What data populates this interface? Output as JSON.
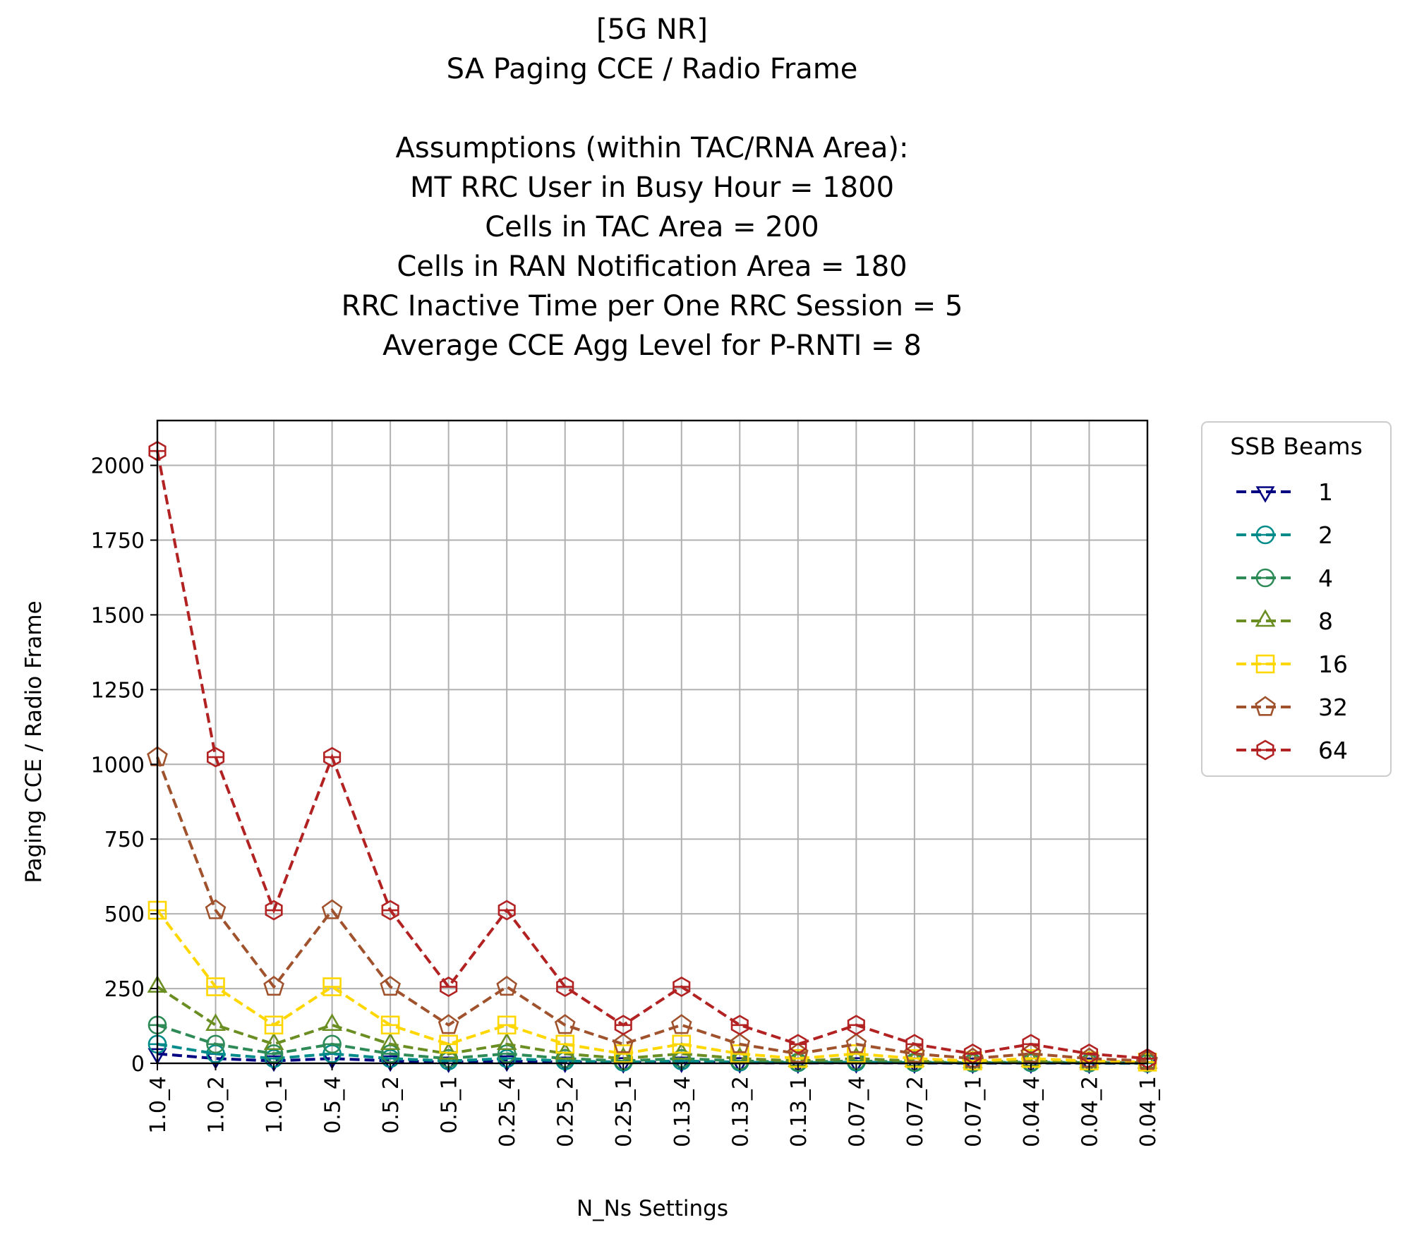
{
  "chart_data": {
    "type": "line",
    "title_lines": [
      "[5G NR]",
      "SA Paging CCE / Radio Frame",
      "",
      "Assumptions (within TAC/RNA Area):",
      "MT RRC User in Busy Hour = 1800",
      "Cells in TAC Area = 200",
      "Cells in RAN Notification Area = 180",
      "RRC Inactive Time per One RRC Session = 5",
      "Average CCE Agg Level for P-RNTI = 8"
    ],
    "xlabel": "N_Ns Settings",
    "ylabel": "Paging CCE / Radio Frame",
    "categories": [
      "1.0_4",
      "1.0_2",
      "1.0_1",
      "0.5_4",
      "0.5_2",
      "0.5_1",
      "0.25_4",
      "0.25_2",
      "0.25_1",
      "0.13_4",
      "0.13_2",
      "0.13_1",
      "0.07_4",
      "0.07_2",
      "0.07_1",
      "0.04_4",
      "0.04_2",
      "0.04_1"
    ],
    "ylim": [
      0,
      2150
    ],
    "yticks": [
      0,
      250,
      500,
      750,
      1000,
      1250,
      1500,
      1750,
      2000
    ],
    "grid": true,
    "legend": {
      "title": "SSB Beams",
      "placement": "outside-right"
    },
    "series": [
      {
        "name": "1",
        "color": "#000080",
        "marker": "triangle-down",
        "values": [
          32,
          16,
          8,
          16,
          8,
          4,
          8,
          4,
          2,
          4,
          2,
          1,
          2,
          1,
          0.5,
          1,
          0.5,
          0.25
        ]
      },
      {
        "name": "2",
        "color": "#008B8B",
        "marker": "circle-hline",
        "values": [
          64,
          32,
          16,
          32,
          16,
          8,
          16,
          8,
          4,
          8,
          4,
          2,
          4,
          2,
          1,
          2,
          1,
          0.5
        ]
      },
      {
        "name": "4",
        "color": "#2E8B57",
        "marker": "circle-hline",
        "values": [
          128,
          64,
          32,
          64,
          32,
          16,
          32,
          16,
          8,
          16,
          8,
          4,
          8,
          4,
          2,
          4,
          2,
          1
        ]
      },
      {
        "name": "8",
        "color": "#6B8E23",
        "marker": "triangle-up",
        "values": [
          256,
          128,
          64,
          128,
          64,
          32,
          64,
          32,
          16,
          32,
          16,
          8,
          16,
          8,
          4,
          8,
          4,
          2
        ]
      },
      {
        "name": "16",
        "color": "#FFD700",
        "marker": "square-hline",
        "values": [
          512,
          256,
          128,
          256,
          128,
          64,
          128,
          64,
          32,
          64,
          32,
          16,
          32,
          16,
          8,
          16,
          8,
          4
        ]
      },
      {
        "name": "32",
        "color": "#A0522D",
        "marker": "pentagon",
        "values": [
          1024,
          512,
          256,
          512,
          256,
          128,
          256,
          128,
          64,
          128,
          64,
          32,
          64,
          32,
          16,
          32,
          16,
          8
        ]
      },
      {
        "name": "64",
        "color": "#B22222",
        "marker": "hexagon-hline",
        "values": [
          2048,
          1024,
          512,
          1024,
          512,
          256,
          512,
          256,
          128,
          256,
          128,
          64,
          128,
          64,
          32,
          64,
          32,
          16
        ]
      }
    ]
  }
}
